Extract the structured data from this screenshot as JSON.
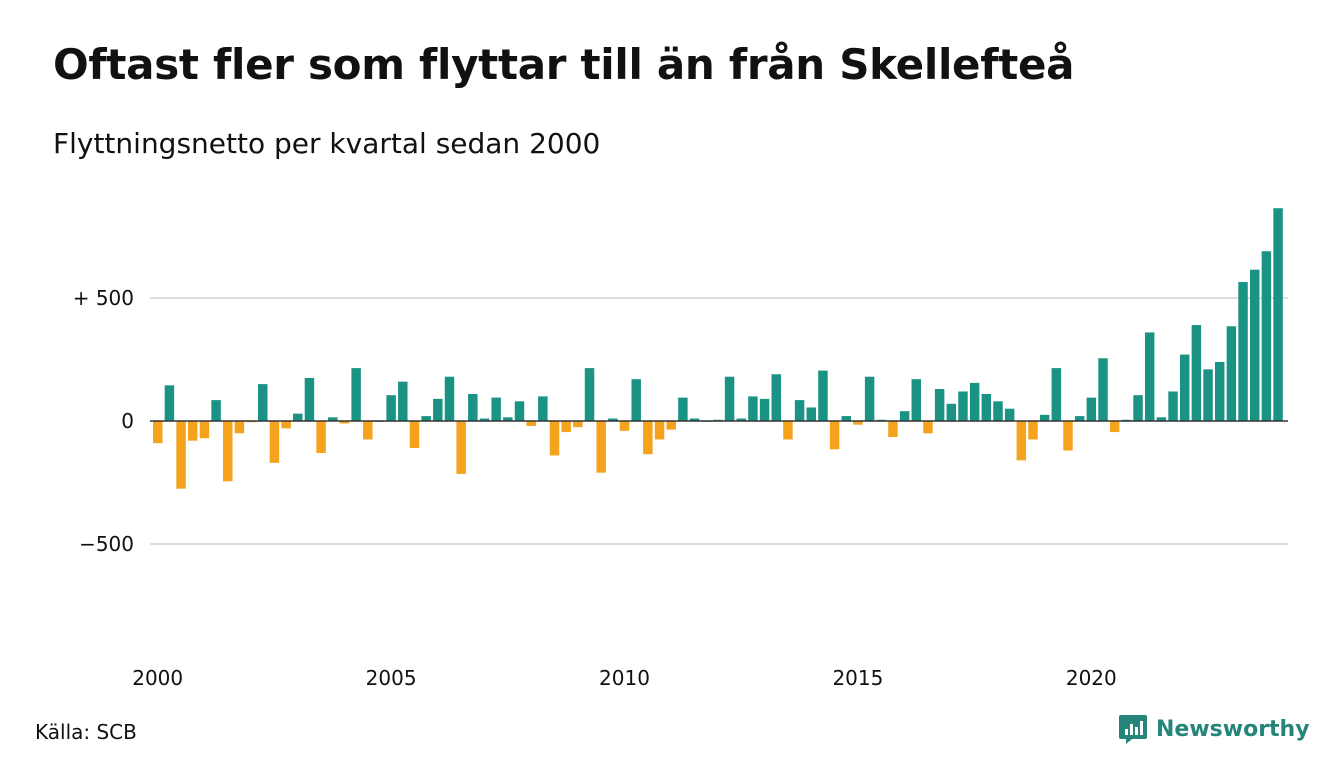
{
  "title": "Oftast fler som flyttar till än från Skellefteå",
  "subtitle": "Flyttningsnetto per kvartal sedan 2000",
  "source": "Källa: SCB",
  "brand": "Newsworthy",
  "colors": {
    "positive": "#1a9384",
    "negative": "#f5a21d",
    "grid": "#dddddd",
    "brand": "#26857a"
  },
  "chart_data": {
    "type": "bar",
    "x_ticks": [
      "2000",
      "2005",
      "2010",
      "2015",
      "2020"
    ],
    "y_ticks": [
      {
        "value": 500,
        "label": "+ 500"
      },
      {
        "value": 0,
        "label": "0"
      },
      {
        "value": -500,
        "label": "−500"
      }
    ],
    "ylim": [
      -870,
      870
    ],
    "grid": true,
    "x_start": "2000 Q1",
    "interval": "quarter",
    "values": [
      -90,
      145,
      -275,
      -80,
      -70,
      85,
      -245,
      -50,
      -5,
      150,
      -170,
      -30,
      30,
      175,
      -130,
      15,
      -10,
      215,
      -75,
      0,
      105,
      160,
      -110,
      20,
      90,
      180,
      -215,
      110,
      10,
      95,
      15,
      80,
      -20,
      100,
      -140,
      -45,
      -25,
      215,
      -210,
      10,
      -40,
      170,
      -135,
      -75,
      -35,
      95,
      10,
      0,
      5,
      180,
      10,
      100,
      90,
      190,
      -75,
      85,
      55,
      205,
      -115,
      20,
      -15,
      180,
      5,
      -65,
      40,
      170,
      -50,
      130,
      70,
      120,
      155,
      110,
      80,
      50,
      -160,
      -75,
      25,
      215,
      -120,
      20,
      95,
      255,
      -45,
      5,
      105,
      360,
      15,
      120,
      270,
      390,
      210,
      240,
      385,
      565,
      615,
      690,
      865
    ]
  }
}
